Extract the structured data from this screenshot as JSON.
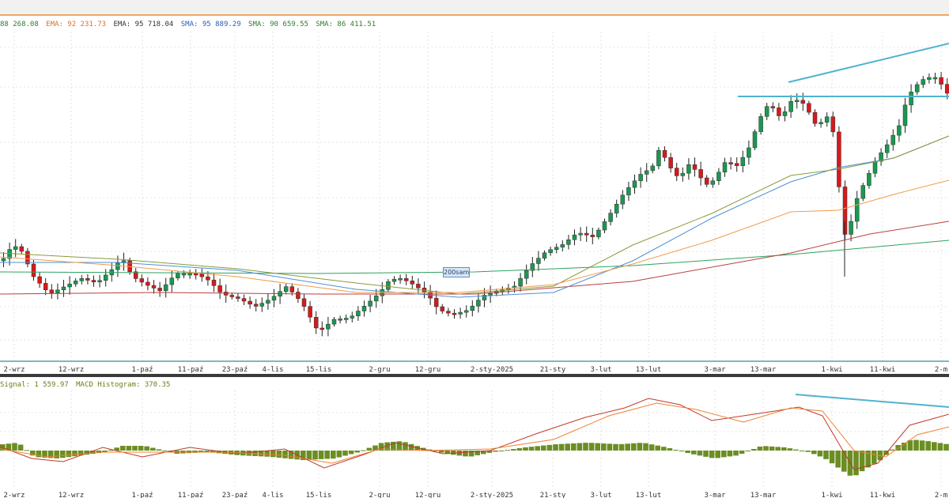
{
  "indicators": {
    "price_legend": [
      {
        "text": "88 268.08",
        "color": "#2f7d2f"
      },
      {
        "text": "EMA: 92 231.73",
        "color": "#e07020"
      },
      {
        "text": "EMA: 95 718.04",
        "color": "#333333"
      },
      {
        "text": "SMA: 95 889.29",
        "color": "#2b5cb8"
      },
      {
        "text": "SMA: 90 659.55",
        "color": "#2f7d2f"
      },
      {
        "text": "SMA: 86 411.51",
        "color": "#2f7d2f"
      }
    ],
    "macd_legend": [
      {
        "text": "Signal: 1 559.97"
      },
      {
        "text": "MACD Histogram: 370.35"
      }
    ]
  },
  "annotation": {
    "label": "200sam"
  },
  "colors": {
    "up": "#1a9850",
    "down": "#d7191c",
    "wick": "#222222",
    "ma_blue": "#4a90d9",
    "ma_olive": "#8a9a3a",
    "ma_orange": "#f39b4a",
    "ma_green": "#2ca25f",
    "ma_red": "#b84040",
    "trendline": "#4fb3cf",
    "histogram": "#6b8e23",
    "macd": "#c0392b",
    "signal": "#f08030"
  },
  "chart_data": [
    {
      "type": "candlestick",
      "x_tick_labels": [
        "2-wrz",
        "12-wrz",
        "1-paź",
        "11-paź",
        "23-paź",
        "4-lis",
        "15-lis",
        "2-gru",
        "12-gru",
        "2-sty-2025",
        "21-sty",
        "3-lut",
        "13-lut",
        "3-mar",
        "13-mar",
        "1-kwi",
        "11-kwi",
        "2-m"
      ],
      "grid": true,
      "series": [
        {
          "name": "EMA: 92 231.73"
        },
        {
          "name": "EMA: 95 718.04"
        },
        {
          "name": "SMA: 95 889.29"
        },
        {
          "name": "SMA: 90 659.55"
        },
        {
          "name": "SMA: 86 411.51"
        }
      ]
    },
    {
      "type": "bar",
      "x_tick_labels": [
        "2-wrz",
        "12-wrz",
        "1-paź",
        "11-paź",
        "23-paź",
        "4-lis",
        "15-lis",
        "2-gru",
        "12-gru",
        "2-sty-2025",
        "21-sty",
        "3-lut",
        "13-lut",
        "3-mar",
        "13-mar",
        "1-kwi",
        "11-kwi",
        "2-m"
      ],
      "series": [
        {
          "name": "Signal: 1 559.97"
        },
        {
          "name": "MACD Histogram: 370.35"
        }
      ],
      "grid": true
    }
  ]
}
